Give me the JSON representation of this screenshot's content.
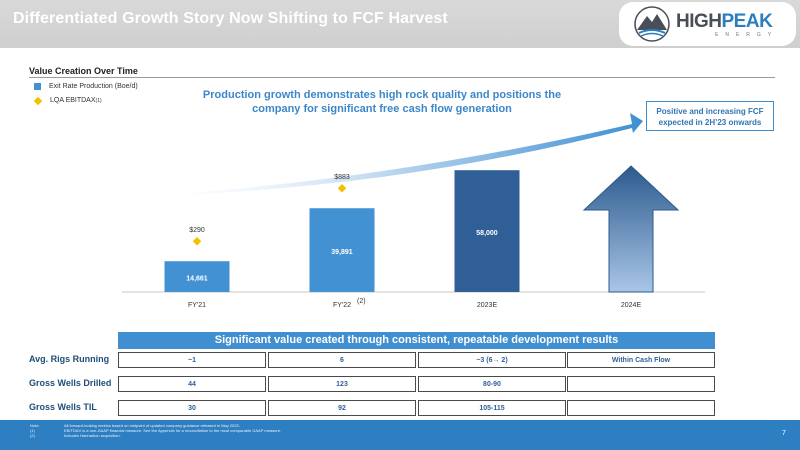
{
  "header": {
    "title": "Differentiated Growth Story Now Shifting to FCF Harvest"
  },
  "logo": {
    "part1": "HIGH",
    "part2": "PEAK",
    "sub": "ENERGY"
  },
  "section": {
    "label": "Value Creation Over Time"
  },
  "legend": {
    "bar_label": "Exit Rate Production (Boe/d)",
    "diamond_label": "LQA EBITDAX",
    "diamond_sup": "(1)"
  },
  "headline": {
    "line1": "Production growth demonstrates high rock quality and positions the",
    "line2": "company for significant free cash flow generation"
  },
  "callout": {
    "line1": "Positive and increasing FCF",
    "line2": "expected in 2H’23 onwards"
  },
  "chart_data": {
    "type": "bar",
    "categories": [
      "FY'21",
      "FY'22",
      "2023E",
      "2024E"
    ],
    "category_notes": [
      "",
      "(2)",
      "",
      ""
    ],
    "series": [
      {
        "name": "Exit Rate Production (Boe/d)",
        "values": [
          14661,
          39891,
          58000,
          null
        ],
        "labels": [
          "14,661",
          "39,891",
          "58,000",
          ""
        ]
      },
      {
        "name": "LQA EBITDAX",
        "values": [
          290,
          883,
          null,
          null
        ],
        "labels": [
          "$290",
          "$883",
          "",
          ""
        ]
      }
    ],
    "ylim": [
      0,
      80000
    ],
    "colors": {
      "bar1": "#4291d3",
      "bar2": "#4291d3",
      "bar3": "#2f5f96",
      "arrow_top": "#2c5a8e",
      "arrow_bottom": "#a9c6e6",
      "diamond": "#f5c000"
    }
  },
  "table": {
    "title": "Significant value created through consistent, repeatable development results",
    "rows": [
      {
        "label": "Avg. Rigs Running",
        "cells": [
          "~1",
          "6",
          "~3 (6→ 2)",
          "Within Cash Flow"
        ]
      },
      {
        "label": "Gross Wells Drilled",
        "cells": [
          "44",
          "123",
          "80-90",
          ""
        ]
      },
      {
        "label": "Gross Wells TIL",
        "cells": [
          "30",
          "92",
          "105-115",
          ""
        ]
      }
    ]
  },
  "notes": {
    "n0": "Note:",
    "t0": "All forward-looking metrics based on midpoint of updated company guidance released in May 2023.",
    "n1": "(1)",
    "t1": "EBITDAX is a non-GAAP financial measure. See the Appendix for a reconciliation to the most comparable GAAP measure.",
    "n2": "(2)",
    "t2": "Includes Hannathon acquisition."
  },
  "page": {
    "number": "7"
  }
}
